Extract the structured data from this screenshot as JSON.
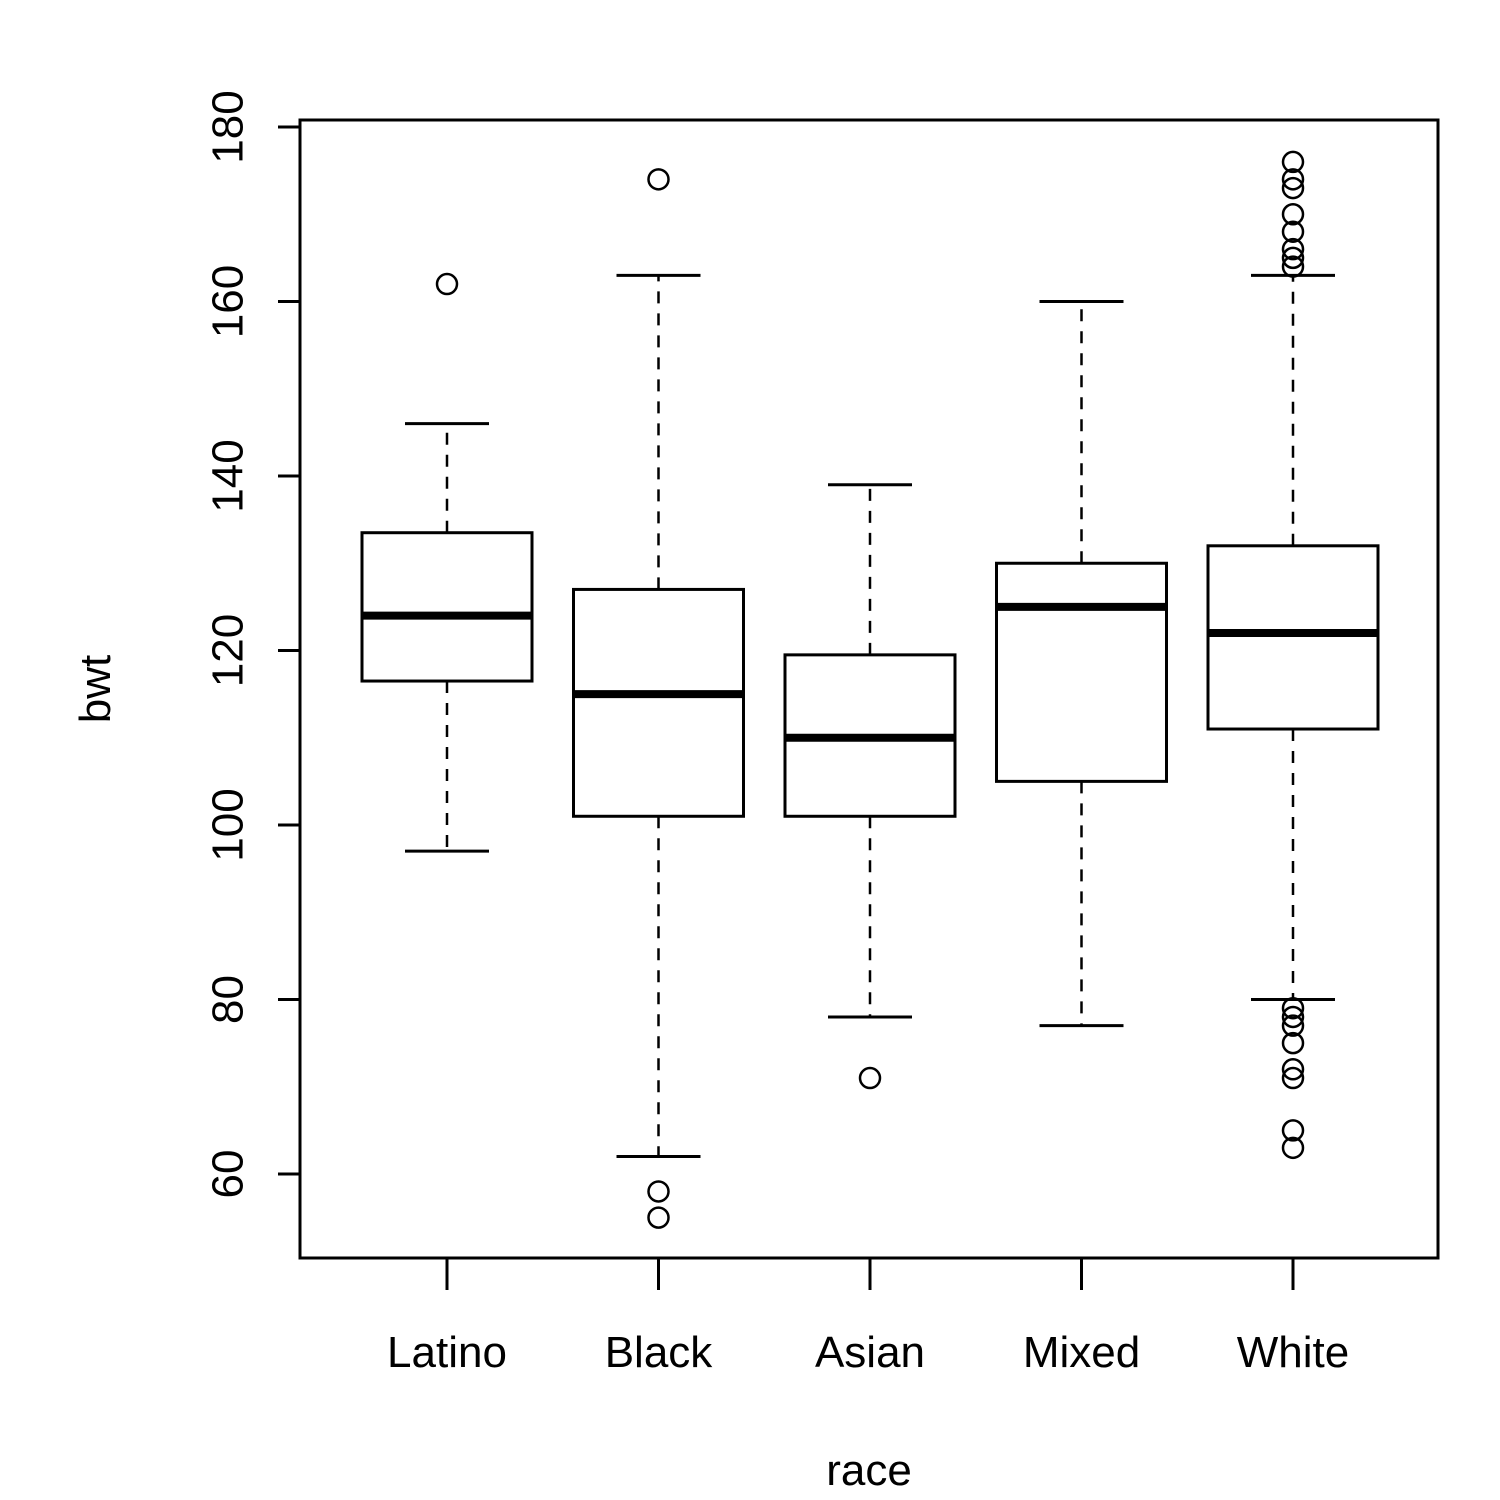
{
  "chart_data": {
    "type": "boxplot",
    "title": "",
    "xlabel": "race",
    "ylabel": "bwt",
    "ylim": [
      50,
      180
    ],
    "yticks": [
      60,
      80,
      100,
      120,
      140,
      160,
      180
    ],
    "ytick_labels": [
      "60",
      "80",
      "100",
      "120",
      "140",
      "160",
      "180"
    ],
    "grid": false,
    "legend": "none",
    "categories": [
      "Latino",
      "Black",
      "Asian",
      "Mixed",
      "White"
    ],
    "boxes": [
      {
        "name": "Latino",
        "whisker_low": 97,
        "q1": 116.5,
        "median": 124,
        "q3": 133.5,
        "whisker_high": 146,
        "outliers": [
          162
        ]
      },
      {
        "name": "Black",
        "whisker_low": 62,
        "q1": 101,
        "median": 115,
        "q3": 127,
        "whisker_high": 163,
        "outliers": [
          174,
          58,
          55
        ]
      },
      {
        "name": "Asian",
        "whisker_low": 78,
        "q1": 101,
        "median": 110,
        "q3": 119.5,
        "whisker_high": 139,
        "outliers": [
          71
        ]
      },
      {
        "name": "Mixed",
        "whisker_low": 77,
        "q1": 105,
        "median": 125,
        "q3": 130,
        "whisker_high": 160,
        "outliers": []
      },
      {
        "name": "White",
        "whisker_low": 80,
        "q1": 111,
        "median": 122,
        "q3": 132,
        "whisker_high": 163,
        "outliers": [
          176,
          174,
          173,
          170,
          168,
          166,
          165,
          164,
          79,
          78,
          77,
          75,
          72,
          71,
          65,
          63
        ]
      }
    ],
    "colors": {
      "stroke": "#000000",
      "fill": "#ffffff"
    }
  }
}
